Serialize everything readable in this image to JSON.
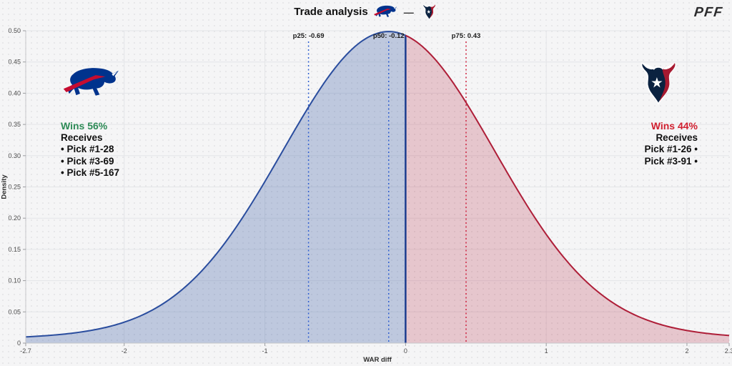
{
  "header": {
    "title": "Trade analysis",
    "separator": "—",
    "brand": "PFF"
  },
  "chart_data": {
    "type": "area",
    "title": "Trade analysis",
    "xlabel": "WAR diff",
    "ylabel": "Density",
    "xlim": [
      -2.7,
      2.3
    ],
    "ylim": [
      0,
      0.5
    ],
    "grid": true,
    "x_ticks": [
      {
        "v": -2.7,
        "label": "-2.7"
      },
      {
        "v": -2,
        "label": "-2"
      },
      {
        "v": -1,
        "label": "-1"
      },
      {
        "v": 0,
        "label": "0"
      },
      {
        "v": 1,
        "label": "1"
      },
      {
        "v": 2,
        "label": "2"
      },
      {
        "v": 2.3,
        "label": "2.3"
      }
    ],
    "y_ticks": [
      {
        "v": 0,
        "label": "0"
      },
      {
        "v": 0.05,
        "label": "0.05"
      },
      {
        "v": 0.1,
        "label": "0.10"
      },
      {
        "v": 0.15,
        "label": "0.15"
      },
      {
        "v": 0.2,
        "label": "0.20"
      },
      {
        "v": 0.25,
        "label": "0.25"
      },
      {
        "v": 0.3,
        "label": "0.30"
      },
      {
        "v": 0.35,
        "label": "0.35"
      },
      {
        "v": 0.4,
        "label": "0.40"
      },
      {
        "v": 0.45,
        "label": "0.45"
      },
      {
        "v": 0.5,
        "label": "0.50"
      }
    ],
    "split_at": 0,
    "percentiles": [
      {
        "name": "p25",
        "label": "p25: -0.69",
        "value": -0.69,
        "line_color": "#2f5fd0"
      },
      {
        "name": "p50",
        "label": "p50: -0.12",
        "value": -0.12,
        "line_color": "#2f5fd0"
      },
      {
        "name": "p75",
        "label": "p75: 0.43",
        "value": 0.43,
        "line_color": "#cf2440"
      }
    ],
    "density_model": {
      "type": "gaussian_mixture",
      "components": [
        {
          "weight": 0.9,
          "mean": -0.12,
          "sd": 0.75
        },
        {
          "weight": 0.1,
          "mean": -0.12,
          "sd": 2.0
        }
      ],
      "sample_step": 0.02
    },
    "key_points": [
      {
        "x": -2.7,
        "density": 0.012
      },
      {
        "x": -2.0,
        "density": 0.029
      },
      {
        "x": -1.0,
        "density": 0.26
      },
      {
        "x": -0.12,
        "density": 0.497
      },
      {
        "x": 0.0,
        "density": 0.493
      },
      {
        "x": 1.0,
        "density": 0.175
      },
      {
        "x": 2.0,
        "density": 0.019
      },
      {
        "x": 2.3,
        "density": 0.014
      }
    ],
    "regions": [
      {
        "name": "left-of-zero",
        "team": "bills",
        "fill": "rgba(45,80,160,0.27)",
        "stroke": "#2a4d9e"
      },
      {
        "name": "right-of-zero",
        "team": "texans",
        "fill": "rgba(176,31,57,0.22)",
        "stroke": "#ae1e38"
      }
    ],
    "zero_line_color": "#1c3d8f",
    "grid_color": "#e4e5e8",
    "axis_color": "#c6c7ca",
    "tick_mark_color": "#9b9ca0",
    "tick_text_color": "#4b4b4b"
  },
  "left_team": {
    "logo": "bills-logo",
    "wins": "Wins 56%",
    "wins_color": "#2e8b57",
    "receives": "Receives",
    "picks": [
      "• Pick #1-28",
      "• Pick #3-69",
      "• Pick #5-167"
    ]
  },
  "right_team": {
    "logo": "texans-logo",
    "wins": "Wins 44%",
    "wins_color": "#d02030",
    "receives": "Receives",
    "picks": [
      "Pick #1-26 •",
      "Pick #3-91 •"
    ]
  },
  "colors": {
    "bills_blue": "#00338d",
    "bills_red": "#c60c30",
    "texans_navy": "#0b2240",
    "texans_red": "#a71930"
  }
}
